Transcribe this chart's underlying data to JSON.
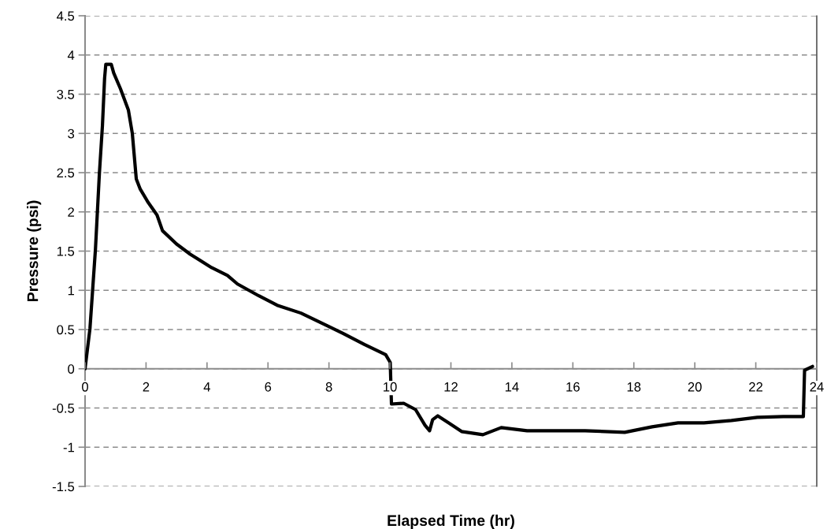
{
  "chart_data": {
    "type": "line",
    "xlabel": "Elapsed Time (hr)",
    "ylabel": "Pressure (psi)",
    "xlim": [
      0,
      24
    ],
    "xticks": [
      0,
      2,
      4,
      6,
      8,
      10,
      12,
      14,
      16,
      18,
      20,
      22,
      24
    ],
    "ylim": [
      -1.5,
      4.5
    ],
    "yticks": [
      -1.5,
      -1,
      -0.5,
      0,
      0.5,
      1,
      1.5,
      2,
      2.5,
      3,
      3.5,
      4,
      4.5
    ],
    "grid": "y",
    "line_style": "solid",
    "marker": "none",
    "series": [
      {
        "color": "#000000",
        "x": [
          0,
          0.16,
          0.34,
          0.47,
          0.57,
          0.64,
          0.68,
          0.86,
          0.94,
          1.16,
          1.42,
          1.55,
          1.68,
          1.81,
          2.07,
          2.36,
          2.54,
          3.0,
          3.45,
          4.15,
          4.67,
          5.0,
          5.7,
          6.3,
          7.08,
          7.94,
          8.46,
          9.16,
          9.86,
          10.01,
          10.05,
          10.45,
          10.84,
          11.15,
          11.3,
          11.4,
          11.57,
          11.93,
          12.35,
          13.05,
          13.65,
          14.5,
          15.38,
          16.4,
          17.7,
          18.6,
          19.45,
          20.3,
          21.2,
          22.05,
          22.9,
          23.56,
          23.6,
          23.86
        ],
        "values": [
          0,
          0.51,
          1.52,
          2.49,
          3.1,
          3.7,
          3.88,
          3.88,
          3.77,
          3.57,
          3.3,
          3.0,
          2.42,
          2.29,
          2.12,
          1.96,
          1.76,
          1.59,
          1.46,
          1.29,
          1.19,
          1.08,
          0.93,
          0.81,
          0.71,
          0.55,
          0.45,
          0.31,
          0.18,
          0.08,
          -0.45,
          -0.44,
          -0.52,
          -0.72,
          -0.79,
          -0.65,
          -0.6,
          -0.69,
          -0.8,
          -0.84,
          -0.75,
          -0.79,
          -0.79,
          -0.79,
          -0.81,
          -0.74,
          -0.69,
          -0.69,
          -0.66,
          -0.62,
          -0.61,
          -0.61,
          -0.02,
          0.03
        ]
      }
    ]
  }
}
